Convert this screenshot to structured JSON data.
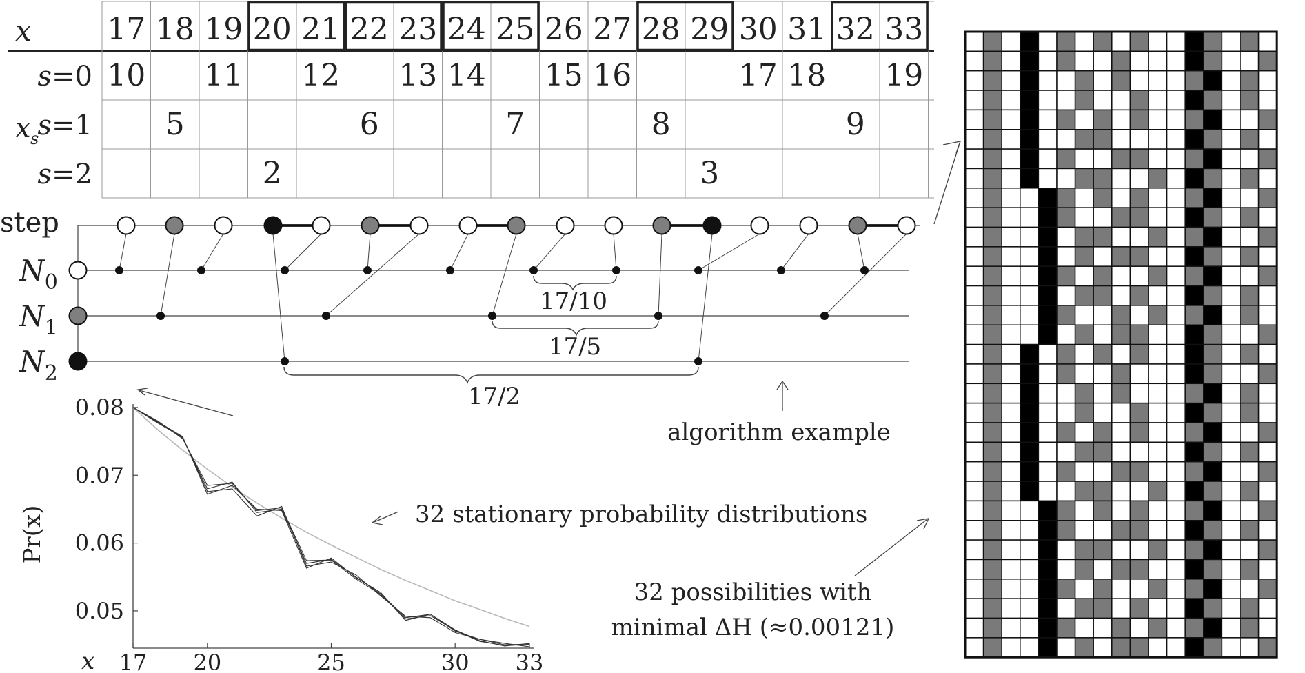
{
  "table": {
    "x_label": "x",
    "xs_label": "x",
    "xs_sub": "s",
    "row_labels": [
      "s=0",
      "s=1",
      "s=2"
    ],
    "x_values": [
      "17",
      "18",
      "19",
      "20",
      "21",
      "22",
      "23",
      "24",
      "25",
      "26",
      "27",
      "28",
      "29",
      "30",
      "31",
      "32",
      "33"
    ],
    "pair_box_values": [
      [
        "20",
        "21"
      ],
      [
        "22",
        "23"
      ],
      [
        "24",
        "25"
      ],
      [
        "28",
        "29"
      ],
      [
        "32",
        "33"
      ]
    ],
    "rows": [
      [
        "10",
        "",
        "11",
        "",
        "12",
        "",
        "13",
        "14",
        "",
        "15",
        "16",
        "",
        "",
        "17",
        "18",
        "",
        "19"
      ],
      [
        "",
        "5",
        "",
        "",
        "",
        "6",
        "",
        "",
        "7",
        "",
        "",
        "8",
        "",
        "",
        "",
        "9",
        ""
      ],
      [
        "",
        "",
        "",
        "2",
        "",
        "",
        "",
        "",
        "",
        "",
        "",
        "",
        "3",
        "",
        "",
        "",
        ""
      ]
    ]
  },
  "algorithm": {
    "step_label": "step",
    "N_labels": [
      {
        "base": "N",
        "sub": "0"
      },
      {
        "base": "N",
        "sub": "1"
      },
      {
        "base": "N",
        "sub": "2"
      }
    ],
    "step_states": [
      "white",
      "gray",
      "white",
      "black",
      "white",
      "gray",
      "white",
      "white",
      "gray",
      "white",
      "white",
      "gray",
      "black",
      "white",
      "white",
      "gray",
      "white"
    ],
    "bold_pairs": [
      [
        3,
        4
      ],
      [
        5,
        6
      ],
      [
        7,
        8
      ],
      [
        11,
        12
      ],
      [
        15,
        16
      ]
    ],
    "brace_labels": [
      "17/10",
      "17/5",
      "17/2"
    ],
    "caption": "algorithm example"
  },
  "chart_data": {
    "type": "line",
    "xlabel": "x",
    "ylabel": "Pr(x)",
    "x_ticks": [
      "17",
      "20",
      "25",
      "30",
      "33"
    ],
    "y_ticks": [
      "0.08",
      "0.07",
      "0.06",
      "0.05"
    ],
    "xlim": [
      17,
      33
    ],
    "ylim": [
      0.0445,
      0.0805
    ],
    "x": [
      17,
      18,
      19,
      20,
      21,
      22,
      23,
      24,
      25,
      26,
      27,
      28,
      29,
      30,
      31,
      32,
      33
    ],
    "series": [
      {
        "values": [
          0.08,
          0.0778,
          0.0755,
          0.068,
          0.069,
          0.0645,
          0.065,
          0.057,
          0.0576,
          0.055,
          0.0525,
          0.049,
          0.0495,
          0.047,
          0.0458,
          0.045,
          0.0451
        ]
      },
      {
        "values": [
          0.08,
          0.0779,
          0.0757,
          0.0672,
          0.0685,
          0.065,
          0.0648,
          0.0563,
          0.0578,
          0.0549,
          0.0527,
          0.0486,
          0.0495,
          0.0472,
          0.0456,
          0.0448,
          0.0452
        ]
      },
      {
        "values": [
          0.08,
          0.0777,
          0.0756,
          0.0676,
          0.068,
          0.064,
          0.0654,
          0.0566,
          0.0572,
          0.0553,
          0.0522,
          0.0492,
          0.049,
          0.0468,
          0.0458,
          0.0452,
          0.0447
        ]
      },
      {
        "values": [
          0.08,
          0.078,
          0.0754,
          0.0685,
          0.0688,
          0.0648,
          0.0652,
          0.0574,
          0.0575,
          0.0547,
          0.0524,
          0.0488,
          0.0493,
          0.0471,
          0.0455,
          0.0449,
          0.045
        ]
      }
    ],
    "reference_series": {
      "values": [
        0.08,
        0.0767,
        0.0737,
        0.0709,
        0.0683,
        0.0659,
        0.0637,
        0.0616,
        0.0597,
        0.0579,
        0.0561,
        0.0545,
        0.053,
        0.0515,
        0.0502,
        0.0489,
        0.0477
      ]
    }
  },
  "annotations": {
    "distributions": "32 stationary probability distributions",
    "possibilities_line1": "32 possibilities with",
    "possibilities_line2": "minimal ΔH  (≈0.00121)"
  },
  "grid": {
    "columns": 17,
    "colors": {
      "white": "#ffffff",
      "gray": "#7a7a7a",
      "black": "#000000"
    },
    "patterns": [
      "WGWBWGWGWGWWBGWGW",
      "WGWBWGWWGWWWBGWWG",
      "WGWBWWGWGWWWGBWGW",
      "WGWBWWGWWGWWBGWGW",
      "WGWBWGWGWGWWGBWWG",
      "WGWBWWGGWWWWBGWGW",
      "WGWBWGWWGGWWGBWWG",
      "WGWBWWGGWWGWBGWGW",
      "WGWWBGWGWGWWGBWWG",
      "WGWWBGWWGGWWBGWGW",
      "WGWWBWGGWWGWGBWWG",
      "WGWWBWGWGGWWBGWGW",
      "WGWWBGWGWWGWGBWWG",
      "WGWWBWGGWGWWBGWGW",
      "WGWWBGWWGWGWGBWGW",
      "WGWWBWGWGGWWBGWWG"
    ]
  }
}
